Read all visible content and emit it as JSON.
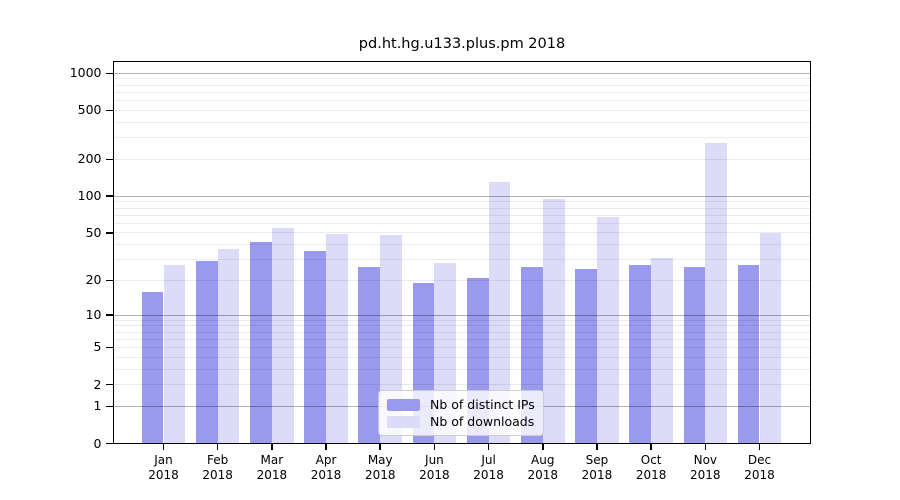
{
  "title": "pd.ht.hg.u133.plus.pm 2018",
  "chart_data": {
    "type": "bar",
    "title": "pd.ht.hg.u133.plus.pm 2018",
    "categories": [
      "Jan 2018",
      "Feb 2018",
      "Mar 2018",
      "Apr 2018",
      "May 2018",
      "Jun 2018",
      "Jul 2018",
      "Aug 2018",
      "Sep 2018",
      "Oct 2018",
      "Nov 2018",
      "Dec 2018"
    ],
    "series": [
      {
        "name": "Nb of distinct IPs",
        "color": "#9999ee",
        "values": [
          16,
          29,
          42,
          35,
          26,
          19,
          21,
          26,
          25,
          27,
          26,
          27
        ]
      },
      {
        "name": "Nb of downloads",
        "color": "#dcdcf8",
        "values": [
          27,
          37,
          55,
          49,
          48,
          28,
          130,
          95,
          67,
          31,
          270,
          50
        ]
      }
    ],
    "xlabel": "",
    "ylabel": "",
    "y_scale": "log10(1+v)",
    "ylim": [
      0,
      1270
    ],
    "y_ticks": [
      0,
      1,
      2,
      5,
      10,
      20,
      50,
      100,
      200,
      500,
      1000
    ],
    "y_major_gridlines": [
      1,
      10,
      100,
      1000
    ],
    "y_minor_gridlines": [
      2,
      3,
      4,
      5,
      6,
      7,
      8,
      9,
      20,
      30,
      40,
      50,
      60,
      70,
      80,
      90,
      200,
      300,
      400,
      500,
      600,
      700,
      800,
      900
    ],
    "grid": "on",
    "legend_position": "lower center",
    "colors": {
      "frame": "#000000",
      "text": "#000000",
      "grid_major": "rgba(0,0,0,0.30)",
      "grid_minor": "rgba(0,0,0,0.08)",
      "legend_border": "#cccccc"
    }
  }
}
